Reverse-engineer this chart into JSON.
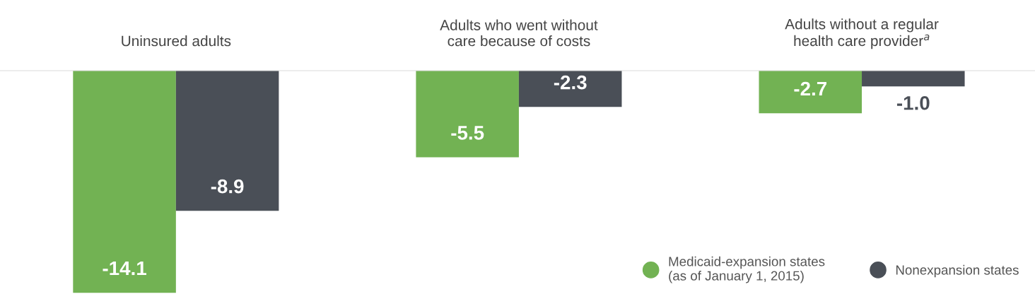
{
  "chart_data": {
    "type": "bar",
    "categories": [
      "Uninsured adults",
      "Adults who went without\ncare because of costs",
      "Adults without a regular\nhealth care provider$^{a}$"
    ],
    "series": [
      {
        "name": "Medicaid-expansion states\n(as of January 1, 2015)",
        "color": "#72b253",
        "values": [
          -14.1,
          -5.5,
          -2.7
        ],
        "value_labels": [
          "-14.1",
          "-5.5",
          "-2.7"
        ]
      },
      {
        "name": "Nonexpansion states",
        "color": "#4a4f57",
        "values": [
          -8.9,
          -2.3,
          -1.0
        ],
        "value_labels": [
          "-8.9",
          "-2.3",
          "-1.0"
        ]
      }
    ],
    "legend": "bottom right",
    "tick_labels": "x",
    "grid": false
  }
}
